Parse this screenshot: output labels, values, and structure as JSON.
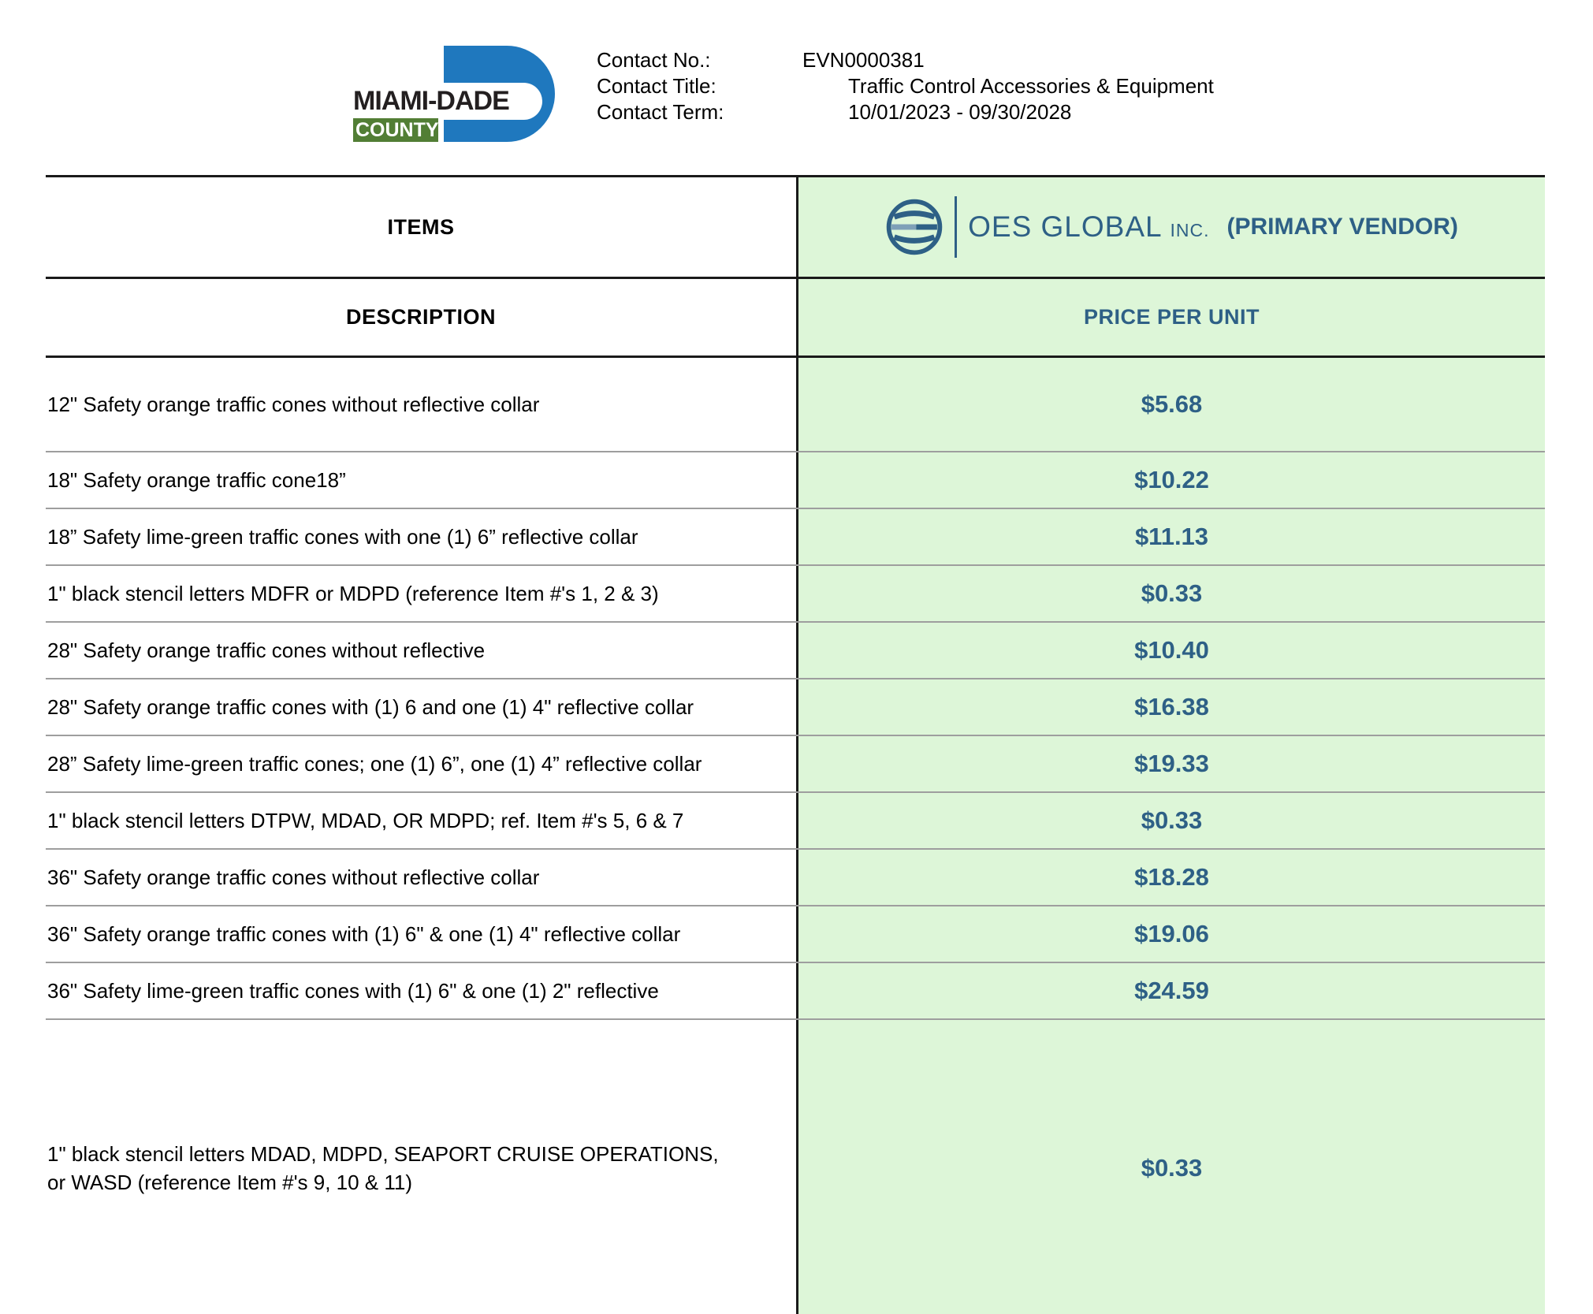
{
  "header": {
    "logo": {
      "name": "MIAMI-DADE",
      "county": "COUNTY"
    },
    "contact": {
      "rows": [
        {
          "label": "Contact No.:",
          "value": "EVN0000381"
        },
        {
          "label": "Contact Title:",
          "value": "Traffic Control Accessories & Equipment"
        },
        {
          "label": "Contact Term:",
          "value": "10/01/2023 - 09/30/2028"
        }
      ]
    }
  },
  "table": {
    "items_header": "ITEMS",
    "vendor": {
      "name": "OES GLOBAL",
      "suffix": "INC.",
      "primary_label": "(PRIMARY VENDOR)",
      "icon": "globe-stripes-icon"
    },
    "description_header": "DESCRIPTION",
    "price_header": "PRICE PER UNIT",
    "rows": [
      {
        "description": "12\" Safety orange traffic cones without reflective collar",
        "price": "$5.68"
      },
      {
        "description": "18\" Safety orange traffic cone18”",
        "price": "$10.22"
      },
      {
        "description": "18” Safety lime-green traffic cones with one (1) 6” reflective collar",
        "price": "$11.13"
      },
      {
        "description": "1\" black stencil letters MDFR or MDPD (reference Item #'s 1, 2 & 3)",
        "price": "$0.33"
      },
      {
        "description": "28\" Safety orange traffic cones without reflective",
        "price": "$10.40"
      },
      {
        "description": "28\" Safety orange traffic cones with (1) 6 and one (1) 4\" reflective collar",
        "price": "$16.38"
      },
      {
        "description": "28” Safety lime-green traffic cones; one (1) 6”, one (1) 4” reflective collar",
        "price": "$19.33"
      },
      {
        "description": "1\" black stencil letters DTPW, MDAD, OR MDPD; ref. Item #'s 5, 6 & 7",
        "price": "$0.33"
      },
      {
        "description": "36\" Safety orange traffic cones without reflective collar",
        "price": "$18.28"
      },
      {
        "description": "36\" Safety orange traffic cones with (1) 6\" & one (1) 4\" reflective collar",
        "price": "$19.06"
      },
      {
        "description": "36\" Safety lime-green traffic cones with (1) 6\" & one (1) 2\" reflective",
        "price": "$24.59"
      },
      {
        "description": "1\" black stencil letters MDAD, MDPD, SEAPORT CRUISE OPERATIONS, or WASD (reference Item #'s 9, 10 & 11)",
        "price": "$0.33"
      }
    ]
  },
  "colors": {
    "sheet_green": "#ddf6d8",
    "sheet_blue": "#2e6086",
    "md_blue": "#1f78be",
    "md_green": "#527e35"
  }
}
